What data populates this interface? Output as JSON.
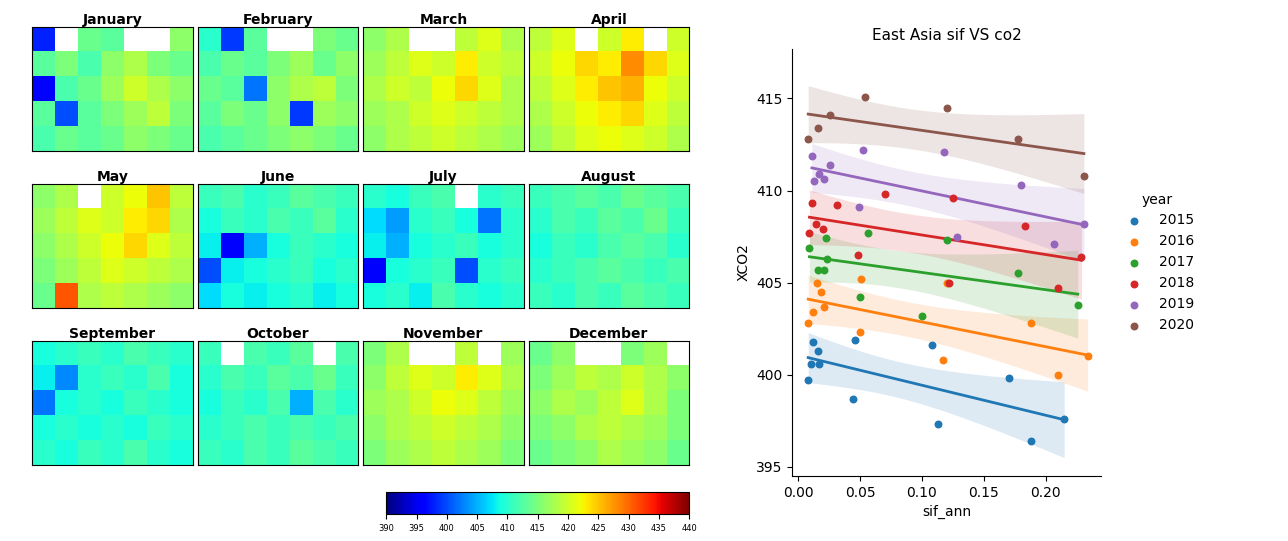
{
  "chart_data": [
    {
      "type": "heatmap_grid",
      "tick_labels": false,
      "colorbar_range": [
        390,
        440
      ],
      "colorbar_ticks": [
        390,
        395,
        400,
        405,
        410,
        415,
        420,
        425,
        430,
        435,
        440
      ],
      "panels": [
        {
          "title": "January",
          "cells": [
            [
              398,
              null,
              414,
              413,
              null,
              null,
              416
            ],
            [
              413,
              415,
              412,
              416,
              418,
              415,
              414
            ],
            [
              396,
              412,
              414,
              417,
              420,
              418,
              416
            ],
            [
              413,
              400,
              413,
              415,
              417,
              419,
              415
            ],
            [
              412,
              414,
              413,
              414,
              416,
              415,
              414
            ]
          ]
        },
        {
          "title": "February",
          "cells": [
            [
              410,
              399,
              413,
              null,
              null,
              415,
              414
            ],
            [
              412,
              414,
              413,
              415,
              417,
              414,
              416
            ],
            [
              414,
              413,
              402,
              416,
              418,
              419,
              415
            ],
            [
              413,
              415,
              414,
              416,
              399,
              417,
              416
            ],
            [
              412,
              413,
              414,
              415,
              416,
              415,
              414
            ]
          ]
        },
        {
          "title": "March",
          "cells": [
            [
              416,
              418,
              null,
              null,
              419,
              421,
              418
            ],
            [
              417,
              419,
              421,
              420,
              423,
              420,
              419
            ],
            [
              418,
              420,
              419,
              422,
              424,
              421,
              418
            ],
            [
              417,
              418,
              420,
              421,
              420,
              419,
              418
            ],
            [
              416,
              418,
              419,
              420,
              419,
              418,
              417
            ]
          ]
        },
        {
          "title": "April",
          "cells": [
            [
              419,
              421,
              null,
              420,
              423,
              null,
              420
            ],
            [
              420,
              422,
              424,
              423,
              428,
              424,
              421
            ],
            [
              419,
              421,
              423,
              425,
              426,
              422,
              420
            ],
            [
              418,
              420,
              422,
              423,
              424,
              421,
              419
            ],
            [
              417,
              419,
              421,
              422,
              421,
              420,
              418
            ]
          ]
        },
        {
          "title": "May",
          "cells": [
            [
              416,
              418,
              null,
              420,
              422,
              425,
              419
            ],
            [
              417,
              419,
              421,
              420,
              423,
              424,
              418
            ],
            [
              416,
              418,
              420,
              422,
              424,
              421,
              419
            ],
            [
              415,
              417,
              419,
              421,
              420,
              419,
              418
            ],
            [
              414,
              431,
              418,
              419,
              418,
              417,
              416
            ]
          ]
        },
        {
          "title": "June",
          "cells": [
            [
              411,
              412,
              410,
              411,
              413,
              412,
              411
            ],
            [
              409,
              411,
              410,
              412,
              411,
              413,
              410
            ],
            [
              408,
              396,
              405,
              409,
              411,
              410,
              409
            ],
            [
              400,
              408,
              409,
              410,
              411,
              409,
              410
            ],
            [
              407,
              409,
              408,
              409,
              410,
              408,
              409
            ]
          ]
        },
        {
          "title": "July",
          "cells": [
            [
              410,
              409,
              411,
              412,
              null,
              410,
              411
            ],
            [
              407,
              404,
              410,
              411,
              409,
              402,
              410
            ],
            [
              408,
              405,
              409,
              410,
              411,
              409,
              410
            ],
            [
              396,
              409,
              410,
              411,
              400,
              410,
              411
            ],
            [
              409,
              410,
              408,
              412,
              410,
              409,
              410
            ]
          ]
        },
        {
          "title": "August",
          "cells": [
            [
              411,
              412,
              413,
              412,
              414,
              413,
              412
            ],
            [
              410,
              412,
              411,
              413,
              412,
              414,
              411
            ],
            [
              409,
              411,
              410,
              412,
              413,
              412,
              410
            ],
            [
              410,
              411,
              412,
              413,
              412,
              411,
              412
            ],
            [
              411,
              410,
              412,
              411,
              413,
              412,
              411
            ]
          ]
        },
        {
          "title": "September",
          "cells": [
            [
              409,
              410,
              411,
              410,
              412,
              411,
              410
            ],
            [
              408,
              403,
              410,
              411,
              410,
              412,
              409
            ],
            [
              402,
              409,
              410,
              409,
              411,
              410,
              409
            ],
            [
              409,
              410,
              409,
              410,
              409,
              411,
              410
            ],
            [
              410,
              409,
              411,
              410,
              412,
              410,
              409
            ]
          ]
        },
        {
          "title": "October",
          "cells": [
            [
              411,
              null,
              412,
              411,
              413,
              null,
              412
            ],
            [
              410,
              412,
              411,
              413,
              412,
              414,
              411
            ],
            [
              409,
              411,
              410,
              412,
              405,
              412,
              410
            ],
            [
              410,
              411,
              412,
              411,
              412,
              411,
              412
            ],
            [
              411,
              410,
              412,
              411,
              413,
              412,
              411
            ]
          ]
        },
        {
          "title": "November",
          "cells": [
            [
              415,
              418,
              null,
              null,
              419,
              null,
              417
            ],
            [
              416,
              419,
              421,
              420,
              423,
              421,
              418
            ],
            [
              417,
              418,
              420,
              422,
              421,
              419,
              417
            ],
            [
              416,
              418,
              419,
              420,
              419,
              418,
              416
            ],
            [
              415,
              417,
              418,
              419,
              418,
              417,
              415
            ]
          ]
        },
        {
          "title": "December",
          "cells": [
            [
              414,
              416,
              null,
              null,
              415,
              417,
              null
            ],
            [
              415,
              417,
              419,
              418,
              420,
              418,
              416
            ],
            [
              416,
              418,
              417,
              419,
              421,
              418,
              415
            ],
            [
              415,
              416,
              418,
              419,
              418,
              417,
              415
            ],
            [
              414,
              415,
              416,
              418,
              417,
              416,
              414
            ]
          ]
        }
      ]
    },
    {
      "type": "scatter",
      "title": "East Asia sif VS co2",
      "x_label": "sif_ann",
      "y_label": "XCO2",
      "legend_title": "year",
      "legend": "right",
      "xlim": [
        -0.005,
        0.245
      ],
      "xticks": [
        {
          "value": 0.0,
          "label": "0.00"
        },
        {
          "value": 0.05,
          "label": "0.05"
        },
        {
          "value": 0.1,
          "label": "0.10"
        },
        {
          "value": 0.15,
          "label": "0.15"
        },
        {
          "value": 0.2,
          "label": "0.20"
        }
      ],
      "ylim": [
        394.5,
        417.7
      ],
      "yticks": [
        395,
        400,
        405,
        410,
        415
      ],
      "series": [
        {
          "name": "2015",
          "color": "#1f77b4",
          "x": [
            0.008,
            0.01,
            0.012,
            0.016,
            0.017,
            0.044,
            0.046,
            0.108,
            0.113,
            0.17,
            0.188,
            0.215
          ],
          "values": [
            399.7,
            400.6,
            401.8,
            401.3,
            400.6,
            398.7,
            401.9,
            401.6,
            397.3,
            399.8,
            396.4,
            397.6
          ]
        },
        {
          "name": "2016",
          "color": "#ff7f0e",
          "x": [
            0.008,
            0.012,
            0.015,
            0.018,
            0.021,
            0.05,
            0.051,
            0.117,
            0.12,
            0.188,
            0.21,
            0.234
          ],
          "values": [
            402.8,
            403.4,
            405.0,
            404.5,
            403.7,
            402.3,
            405.2,
            400.8,
            405.0,
            402.8,
            400.0,
            401.0
          ]
        },
        {
          "name": "2017",
          "color": "#2ca02c",
          "x": [
            0.009,
            0.016,
            0.021,
            0.022,
            0.023,
            0.05,
            0.056,
            0.1,
            0.12,
            0.178,
            0.226
          ],
          "values": [
            406.9,
            405.7,
            405.7,
            407.4,
            406.3,
            404.2,
            407.7,
            403.2,
            407.3,
            405.5,
            403.8
          ]
        },
        {
          "name": "2018",
          "color": "#d62728",
          "x": [
            0.009,
            0.011,
            0.014,
            0.02,
            0.031,
            0.048,
            0.07,
            0.122,
            0.125,
            0.183,
            0.21,
            0.229
          ],
          "values": [
            407.7,
            409.3,
            408.2,
            407.9,
            409.2,
            406.5,
            409.8,
            405.0,
            409.6,
            408.1,
            404.7,
            406.4
          ]
        },
        {
          "name": "2019",
          "color": "#9467bd",
          "x": [
            0.011,
            0.013,
            0.017,
            0.021,
            0.026,
            0.049,
            0.052,
            0.118,
            0.128,
            0.18,
            0.207,
            0.231
          ],
          "values": [
            411.9,
            410.5,
            410.9,
            410.6,
            411.4,
            409.1,
            412.2,
            412.1,
            407.5,
            410.3,
            407.1,
            408.2
          ]
        },
        {
          "name": "2020",
          "color": "#8c564b",
          "x": [
            0.008,
            0.016,
            0.026,
            0.054,
            0.12,
            0.178,
            0.231
          ],
          "values": [
            412.8,
            413.4,
            414.1,
            415.1,
            414.5,
            412.8,
            410.8
          ]
        }
      ]
    }
  ]
}
